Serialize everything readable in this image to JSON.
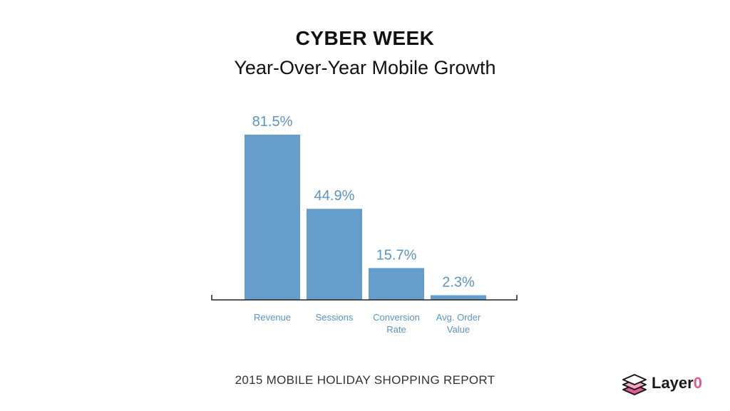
{
  "title": "CYBER WEEK",
  "subtitle": "Year-Over-Year Mobile Growth",
  "footer": "2015 MOBILE HOLIDAY SHOPPING REPORT",
  "logo": {
    "text_main": "Layer",
    "text_accent": "0",
    "icon": "layered-stack-icon"
  },
  "colors": {
    "bar": "#659ecb",
    "value_label": "#5b94c3",
    "category_label": "#5b94c3",
    "axis": "#222222",
    "logo_accent": "#e05d94"
  },
  "chart_data": {
    "type": "bar",
    "categories": [
      [
        "Revenue"
      ],
      [
        "Sessions"
      ],
      [
        "Conversion",
        "Rate"
      ],
      [
        "Avg. Order",
        "Value"
      ]
    ],
    "values": [
      81.5,
      44.9,
      15.7,
      2.3
    ],
    "value_labels": [
      "81.5%",
      "44.9%",
      "15.7%",
      "2.3%"
    ],
    "unit": "%",
    "ylim": [
      0,
      100
    ],
    "grid": false,
    "legend": "none"
  }
}
